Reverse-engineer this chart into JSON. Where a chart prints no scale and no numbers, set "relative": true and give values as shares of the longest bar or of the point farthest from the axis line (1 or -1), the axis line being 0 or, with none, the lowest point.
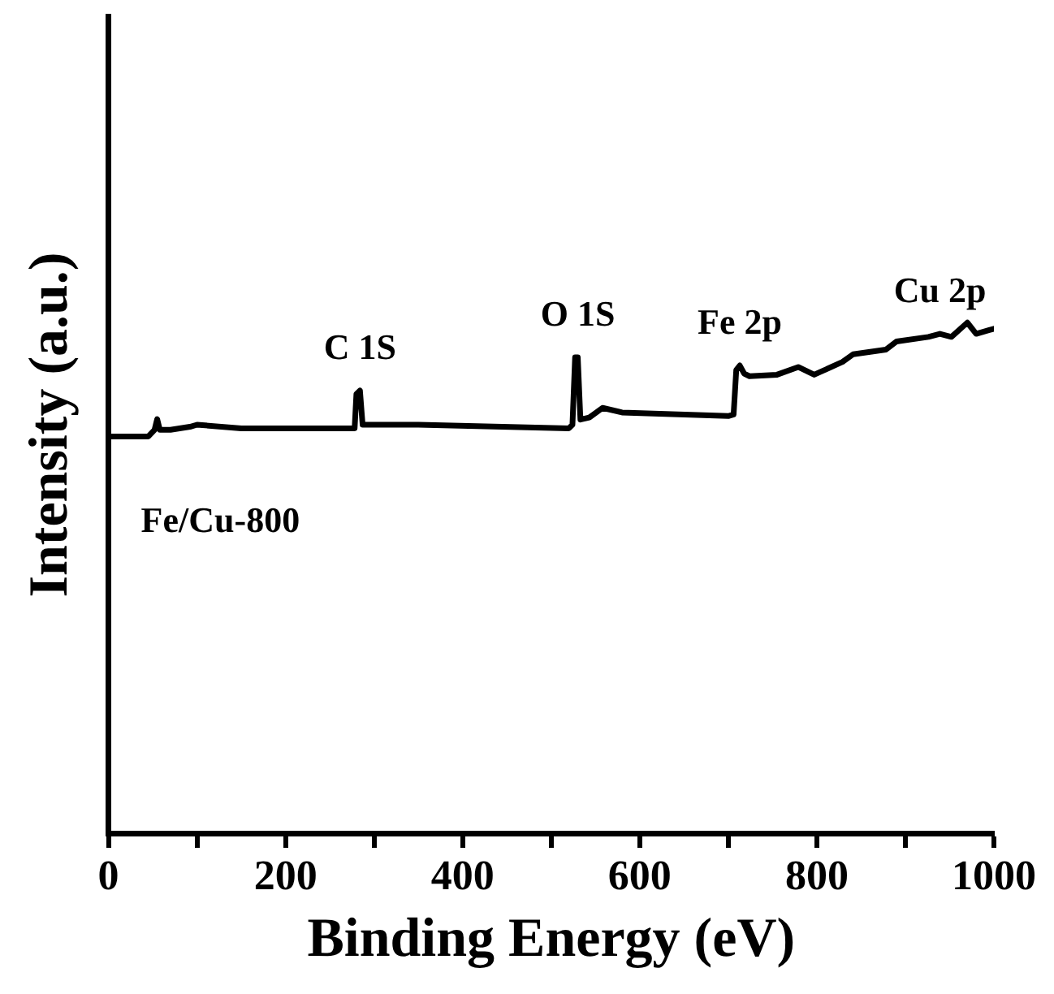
{
  "chart_data": {
    "type": "line",
    "relative": true,
    "xlabel": "Binding Energy (eV)",
    "ylabel": "Intensity (a.u.)",
    "xlim": [
      0,
      1000
    ],
    "xticks": [
      0,
      {
        "value": 100,
        "label": null
      },
      200,
      {
        "value": 300,
        "label": null
      },
      400,
      {
        "value": 500,
        "label": null
      },
      600,
      {
        "value": 700,
        "label": null
      },
      800,
      {
        "value": 900,
        "label": null
      },
      1000
    ],
    "tick_labels": "x",
    "grid": false,
    "legend": false,
    "marker": "none",
    "line_style": "solid",
    "series": [
      {
        "color": "#000000",
        "x": [
          0,
          45,
          52,
          55,
          58,
          70,
          92,
          100,
          150,
          278,
          280,
          284,
          287,
          350,
          520,
          524,
          527,
          530,
          533,
          543,
          558,
          580,
          700,
          706,
          709,
          713,
          718,
          724,
          755,
          779,
          797,
          829,
          841,
          878,
          890,
          926,
          939,
          952,
          970,
          980,
          994,
          1000
        ],
        "values": [
          0.777,
          0.777,
          0.79,
          0.811,
          0.79,
          0.79,
          0.796,
          0.8,
          0.793,
          0.793,
          0.86,
          0.867,
          0.8,
          0.8,
          0.793,
          0.8,
          0.932,
          0.932,
          0.81,
          0.814,
          0.833,
          0.824,
          0.817,
          0.82,
          0.907,
          0.916,
          0.9,
          0.895,
          0.898,
          0.913,
          0.898,
          0.923,
          0.938,
          0.947,
          0.963,
          0.972,
          0.978,
          0.972,
          1,
          0.978,
          0.985,
          0.988
        ]
      }
    ],
    "annotations": [
      {
        "text": "C 1S",
        "x": 284,
        "y": 0.867
      },
      {
        "text": "O 1S",
        "x": 530,
        "y": 0.932
      },
      {
        "text": "Fe 2p",
        "x": 713,
        "y": 0.916
      },
      {
        "text": "Cu 2p",
        "x": 939,
        "y": 0.978
      },
      "Fe/Cu-800"
    ]
  }
}
